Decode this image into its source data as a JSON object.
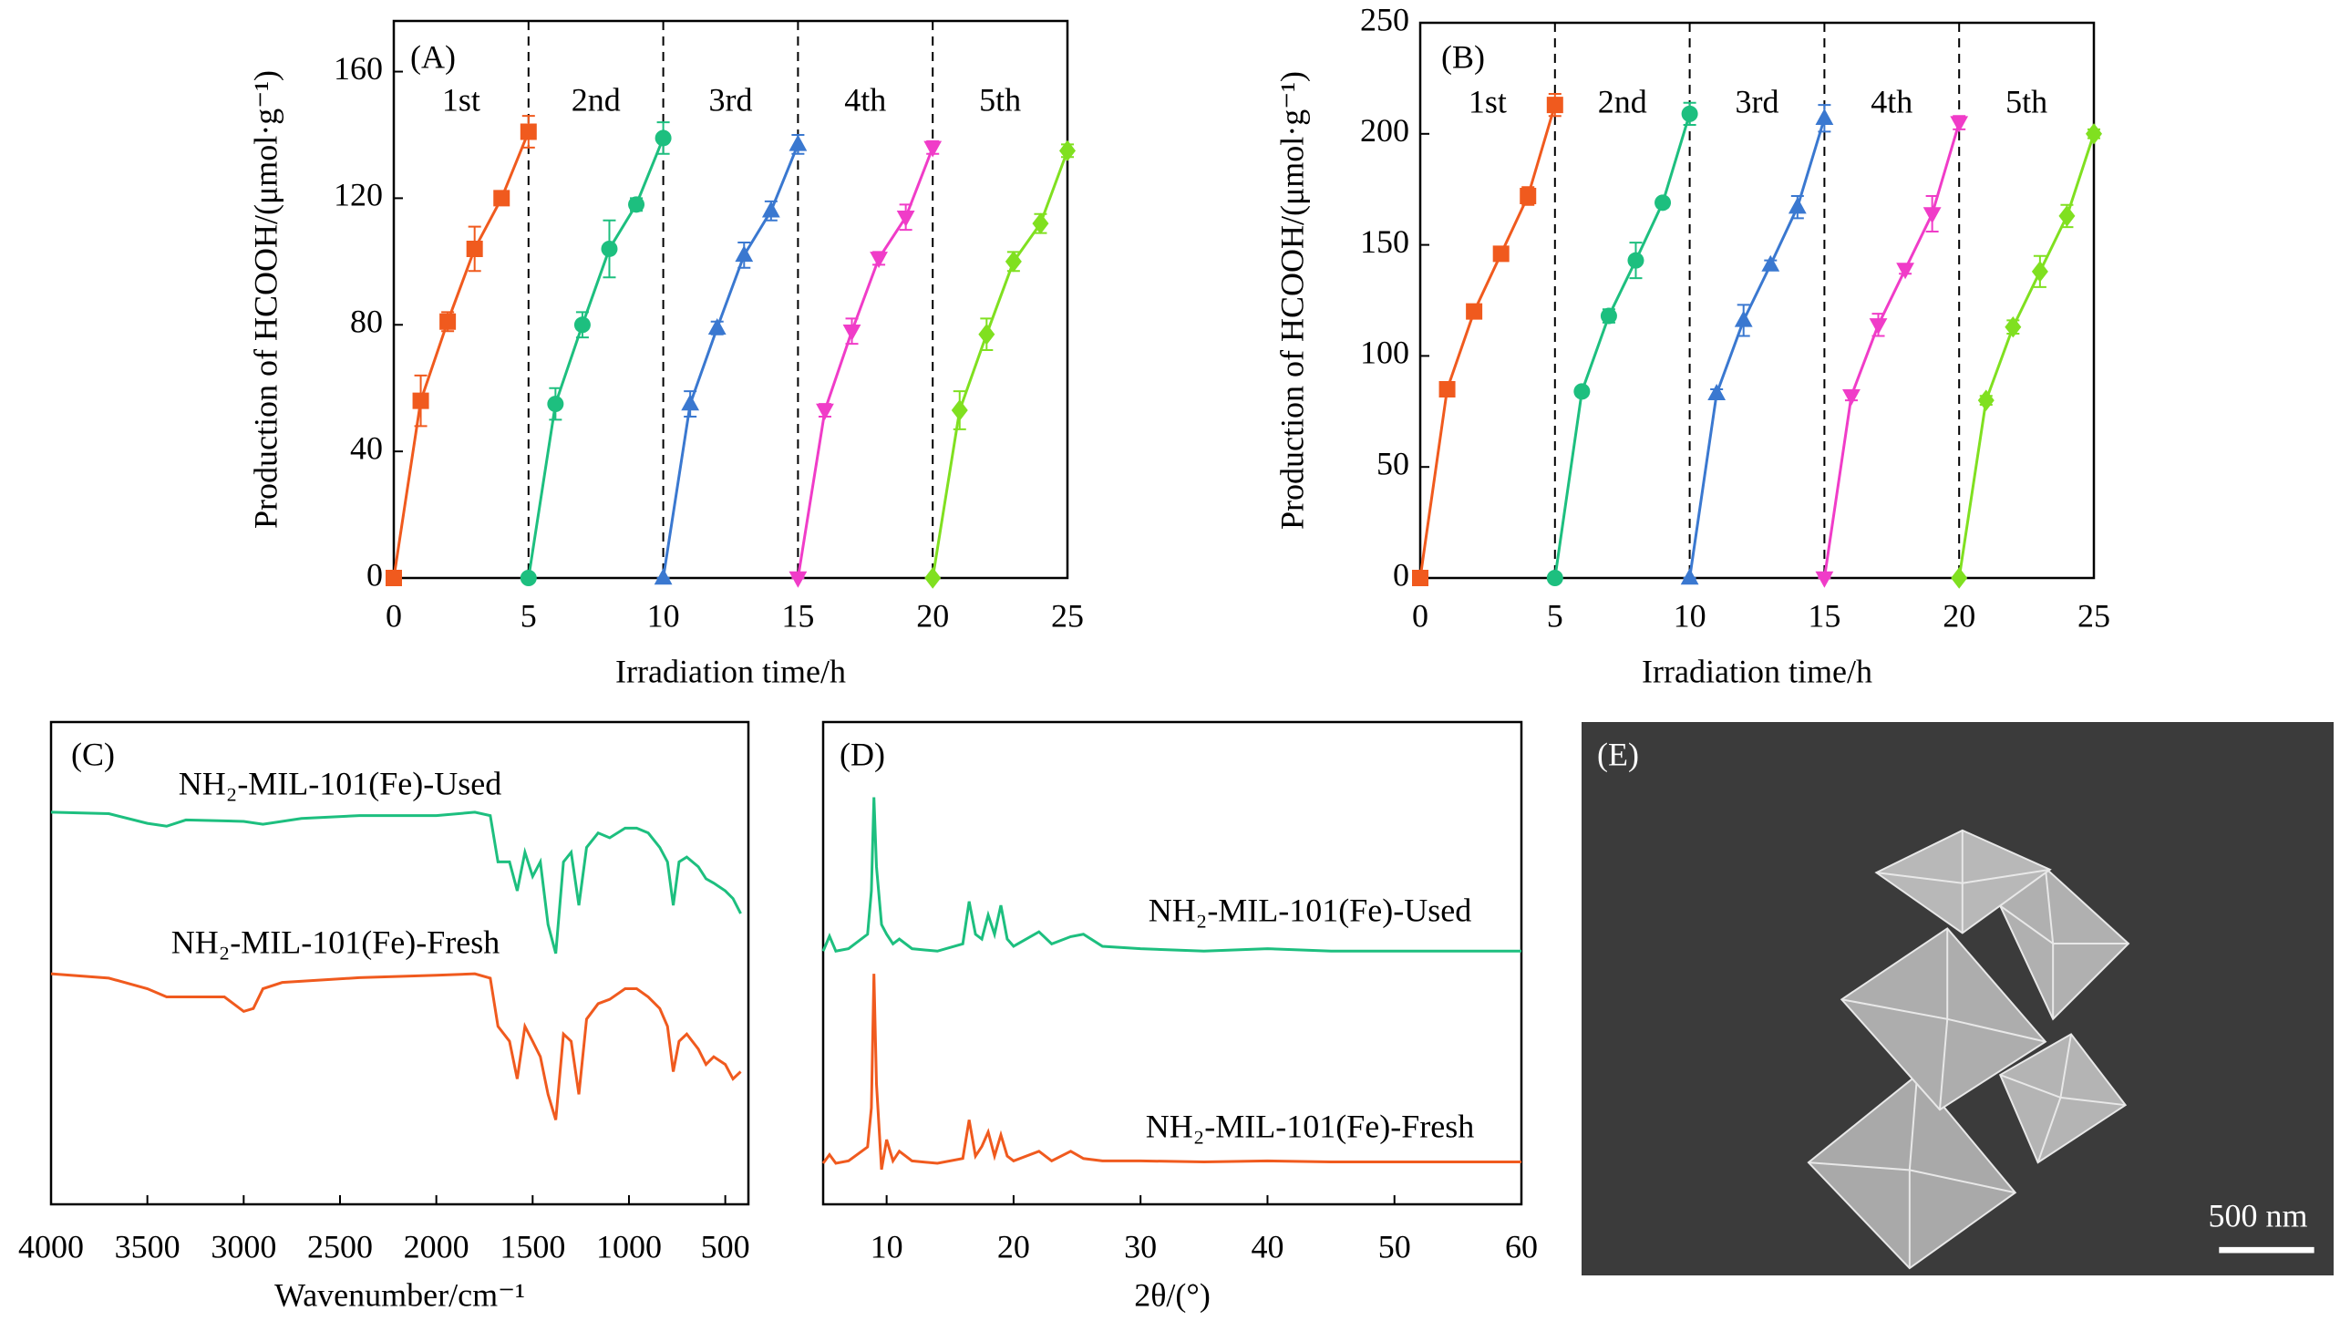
{
  "chart_data": [
    {
      "type": "line",
      "panel_label": "(A)",
      "x_label": "Irradiation time/h",
      "y_label": "Production of HCOOH/(μmol·g⁻¹)",
      "xlim": [
        0,
        25
      ],
      "xticks": [
        0,
        5,
        10,
        15,
        20,
        25
      ],
      "ylim": [
        0,
        176
      ],
      "yticks": [
        0,
        40,
        80,
        120,
        160
      ],
      "dividers": true,
      "series": [
        {
          "name": "1st",
          "color": "#f05a1e",
          "marker": "square",
          "x": [
            0,
            1,
            2,
            3,
            4,
            5
          ],
          "values": [
            0,
            56,
            81,
            104,
            120,
            141
          ],
          "errors": [
            0,
            8,
            3,
            7,
            2,
            5
          ]
        },
        {
          "name": "2nd",
          "color": "#1dbf7f",
          "marker": "circle",
          "x": [
            5,
            6,
            7,
            8,
            9,
            10
          ],
          "values": [
            0,
            55,
            80,
            104,
            118,
            139
          ],
          "errors": [
            0,
            5,
            4,
            9,
            2,
            5
          ]
        },
        {
          "name": "3rd",
          "color": "#3a78d0",
          "marker": "triangle-up",
          "x": [
            10,
            11,
            12,
            13,
            14,
            15
          ],
          "values": [
            0,
            55,
            79,
            102,
            116,
            137
          ],
          "errors": [
            0,
            4,
            2,
            4,
            3,
            3
          ]
        },
        {
          "name": "4th",
          "color": "#f03cc8",
          "marker": "triangle-down",
          "x": [
            15,
            16,
            17,
            18,
            19,
            20
          ],
          "values": [
            0,
            53,
            78,
            101,
            114,
            136
          ],
          "errors": [
            0,
            2,
            4,
            2,
            4,
            2
          ]
        },
        {
          "name": "5th",
          "color": "#80e020",
          "marker": "diamond",
          "x": [
            20,
            21,
            22,
            23,
            24,
            25
          ],
          "values": [
            0,
            53,
            77,
            100,
            112,
            135
          ],
          "errors": [
            0,
            6,
            5,
            3,
            3,
            2
          ]
        }
      ]
    },
    {
      "type": "line",
      "panel_label": "(B)",
      "x_label": "Irradiation time/h",
      "y_label": "Production of HCOOH/(μmol·g⁻¹)",
      "xlim": [
        0,
        25
      ],
      "xticks": [
        0,
        5,
        10,
        15,
        20,
        25
      ],
      "ylim": [
        0,
        250
      ],
      "yticks": [
        0,
        50,
        100,
        150,
        200,
        250
      ],
      "dividers": true,
      "series": [
        {
          "name": "1st",
          "color": "#f05a1e",
          "marker": "square",
          "x": [
            0,
            1,
            2,
            3,
            4,
            5
          ],
          "values": [
            0,
            85,
            120,
            146,
            172,
            213
          ],
          "errors": [
            0,
            3,
            2,
            3,
            4,
            5
          ]
        },
        {
          "name": "2nd",
          "color": "#1dbf7f",
          "marker": "circle",
          "x": [
            5,
            6,
            7,
            8,
            9,
            10
          ],
          "values": [
            0,
            84,
            118,
            143,
            169,
            209
          ],
          "errors": [
            0,
            2,
            3,
            8,
            2,
            5
          ]
        },
        {
          "name": "3rd",
          "color": "#3a78d0",
          "marker": "triangle-up",
          "x": [
            10,
            11,
            12,
            13,
            14,
            15
          ],
          "values": [
            0,
            83,
            116,
            141,
            167,
            207
          ],
          "errors": [
            0,
            2,
            7,
            2,
            5,
            6
          ]
        },
        {
          "name": "4th",
          "color": "#f03cc8",
          "marker": "triangle-down",
          "x": [
            15,
            16,
            17,
            18,
            19,
            20
          ],
          "values": [
            0,
            82,
            114,
            139,
            164,
            205
          ],
          "errors": [
            0,
            2,
            5,
            2,
            8,
            3
          ]
        },
        {
          "name": "5th",
          "color": "#80e020",
          "marker": "diamond",
          "x": [
            20,
            21,
            22,
            23,
            24,
            25
          ],
          "values": [
            0,
            80,
            113,
            138,
            163,
            200
          ],
          "errors": [
            0,
            2,
            3,
            7,
            5,
            2
          ]
        }
      ]
    },
    {
      "type": "line",
      "panel_label": "(C)",
      "x_label": "Wavenumber/cm⁻¹",
      "xlim": [
        4000,
        380
      ],
      "xticks": [
        4000,
        3500,
        3000,
        2500,
        2000,
        1500,
        1000,
        500
      ],
      "ylim": [
        0,
        100
      ],
      "series": [
        {
          "name": "NH₂-MIL-101(Fe)-Used",
          "color": "#1dbf7f",
          "x": [
            4000,
            3700,
            3500,
            3400,
            3300,
            3000,
            2900,
            2700,
            2400,
            2000,
            1800,
            1720,
            1680,
            1620,
            1580,
            1540,
            1500,
            1460,
            1420,
            1380,
            1340,
            1300,
            1260,
            1220,
            1160,
            1100,
            1020,
            960,
            900,
            840,
            800,
            770,
            740,
            700,
            640,
            600,
            560,
            500,
            460,
            420
          ],
          "values": [
            81.3,
            81,
            79,
            78.4,
            79.7,
            79.4,
            78.8,
            80,
            80.6,
            80.6,
            81.3,
            80.6,
            71,
            71,
            65,
            73,
            68,
            71,
            58,
            52,
            71,
            73,
            62,
            74,
            77,
            76,
            78,
            78,
            77,
            74,
            71,
            62,
            71,
            72,
            70,
            67.5,
            66.6,
            65,
            63.4,
            60.3
          ]
        },
        {
          "name": "NH₂-MIL-101(Fe)-Fresh",
          "color": "#f05a1e",
          "x": [
            4000,
            3700,
            3500,
            3400,
            3300,
            3100,
            3000,
            2950,
            2900,
            2800,
            2400,
            2000,
            1800,
            1720,
            1680,
            1620,
            1580,
            1540,
            1500,
            1460,
            1420,
            1380,
            1340,
            1300,
            1260,
            1220,
            1160,
            1100,
            1020,
            960,
            900,
            840,
            800,
            770,
            740,
            700,
            640,
            600,
            560,
            500,
            460,
            420
          ],
          "values": [
            47.8,
            46.9,
            44.7,
            43,
            43,
            43,
            40,
            40.6,
            44.7,
            46,
            47,
            47.5,
            47.8,
            46.9,
            36.9,
            33.8,
            26,
            36.9,
            33.8,
            30.6,
            22.8,
            17.5,
            35.3,
            33.8,
            22.8,
            38.4,
            41.6,
            42.5,
            44.7,
            44.7,
            43,
            40.6,
            36.9,
            27.5,
            33.8,
            35.3,
            32.2,
            29,
            30.6,
            29,
            26,
            27.5
          ]
        }
      ]
    },
    {
      "type": "line",
      "panel_label": "(D)",
      "x_label": "2θ/(°)",
      "xlim": [
        5,
        60
      ],
      "xticks": [
        10,
        20,
        30,
        40,
        50,
        60
      ],
      "ylim": [
        0,
        100
      ],
      "series": [
        {
          "name": "NH₂-MIL-101(Fe)-Used",
          "color": "#1dbf7f",
          "x": [
            5,
            5.5,
            6,
            7,
            8.5,
            8.8,
            9,
            9.2,
            9.6,
            10,
            10.5,
            11,
            12,
            14,
            16,
            16.5,
            17,
            17.5,
            18,
            18.5,
            19,
            19.5,
            20,
            22,
            23,
            24.5,
            25.5,
            27,
            30,
            35,
            40,
            45,
            50,
            55,
            60
          ],
          "values": [
            52.5,
            55.6,
            52.5,
            53,
            56,
            65,
            84.4,
            70,
            58,
            56,
            54,
            55,
            53,
            52.5,
            54,
            62.8,
            56,
            55,
            60,
            56,
            62,
            55,
            53.5,
            56.5,
            54,
            55.5,
            56,
            53.5,
            53,
            52.5,
            53,
            52.5,
            52.5,
            52.5,
            52.5
          ]
        },
        {
          "name": "NH₂-MIL-101(Fe)-Fresh",
          "color": "#f05a1e",
          "x": [
            5,
            5.5,
            6,
            7,
            8.5,
            8.8,
            9,
            9.2,
            9.6,
            10,
            10.5,
            11,
            12,
            14,
            16,
            16.5,
            17,
            17.5,
            18,
            18.5,
            19,
            19.5,
            20,
            22,
            23,
            24.5,
            25.5,
            27,
            30,
            35,
            40,
            45,
            50,
            55,
            60
          ],
          "values": [
            8.5,
            10.3,
            8.5,
            9,
            11.9,
            20,
            47.8,
            25,
            7.2,
            13.4,
            9,
            11,
            9,
            8.5,
            9.5,
            17.5,
            10,
            12,
            15,
            10,
            14.4,
            10,
            9,
            11,
            9,
            11,
            9.5,
            9,
            9,
            8.8,
            9,
            8.8,
            8.8,
            8.8,
            8.8
          ]
        }
      ]
    }
  ],
  "image": {
    "panel_label": "(E)",
    "scale_bar": "500 nm"
  }
}
